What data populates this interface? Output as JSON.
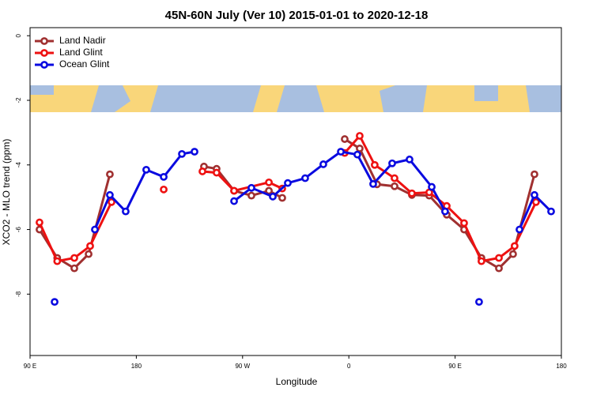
{
  "chart_data": {
    "type": "line",
    "title": "45N-60N July (Ver 10)   2015-01-01 to 2020-12-18",
    "xlabel": "Longitude",
    "ylabel": "XCO2 - MLO trend (ppm)",
    "xlim": [
      90,
      540
    ],
    "ylim": [
      -9.9,
      0.25
    ],
    "xticks": [
      {
        "value": 90,
        "label": "90 E"
      },
      {
        "value": 180,
        "label": "180"
      },
      {
        "value": 270,
        "label": "90 W"
      },
      {
        "value": 360,
        "label": "0"
      },
      {
        "value": 450,
        "label": "90 E"
      },
      {
        "value": 540,
        "label": "180"
      }
    ],
    "yticks": [
      0,
      -2,
      -4,
      -6,
      -8
    ],
    "legend": "top-left",
    "series": [
      {
        "name": "Land Nadir",
        "color": "#a03030",
        "x": [
          98,
          113,
          127.5,
          139.6,
          157.6,
          null,
          237.3,
          248,
          262.8,
          277.5,
          292.3,
          303.6,
          null,
          356.5,
          369.2,
          383.9,
          398.7,
          413.4,
          428.1,
          442.9,
          457.6,
          472.3,
          487.1,
          499.1,
          517.2
        ],
        "values": [
          -6.0,
          -6.88,
          -7.2,
          -6.76,
          -4.29,
          null,
          -4.05,
          -4.12,
          -4.8,
          -4.95,
          -4.8,
          -5.02,
          null,
          -3.2,
          -3.49,
          -4.6,
          -4.66,
          -4.93,
          -4.95,
          -5.54,
          -6.0,
          -6.88,
          -7.2,
          -6.76,
          -4.29
        ]
      },
      {
        "name": "Land Glint",
        "color": "#ee1111",
        "x": [
          98,
          113,
          127.5,
          140.9,
          159,
          null,
          203.2,
          null,
          236,
          248,
          262.8,
          292.3,
          303.6,
          null,
          356.5,
          369.2,
          381.9,
          398.7,
          413.4,
          428.1,
          442.9,
          457.6,
          472.3,
          487.1,
          500.4,
          518.5
        ],
        "values": [
          -5.78,
          -6.98,
          -6.88,
          -6.51,
          -5.15,
          null,
          -4.76,
          null,
          -4.2,
          -4.24,
          -4.8,
          -4.54,
          -4.73,
          null,
          -3.63,
          -3.1,
          -4.0,
          -4.41,
          -4.88,
          -4.85,
          -5.27,
          -5.8,
          -6.98,
          -6.88,
          -6.51,
          -5.15
        ]
      },
      {
        "name": "Ocean Glint",
        "color": "#0a0ae0",
        "x": [
          110.8,
          null,
          144.9,
          157.6,
          171,
          188.4,
          203.2,
          218.6,
          229.3,
          null,
          262.8,
          277.5,
          295.6,
          308.3,
          323,
          338.4,
          353.2,
          367.2,
          380.6,
          396.7,
          411.4,
          430.2,
          441.5,
          null,
          470.3,
          null,
          504.5,
          517.2,
          531.3
        ],
        "values": [
          -8.24,
          null,
          -6.0,
          -4.93,
          -5.44,
          -4.15,
          -4.37,
          -3.66,
          -3.59,
          null,
          -5.12,
          -4.71,
          -4.98,
          -4.56,
          -4.41,
          -3.98,
          -3.59,
          -3.68,
          -4.59,
          -3.95,
          -3.83,
          -4.68,
          -5.44,
          null,
          -8.24,
          null,
          -6.0,
          -4.93,
          -5.44
        ]
      }
    ]
  }
}
